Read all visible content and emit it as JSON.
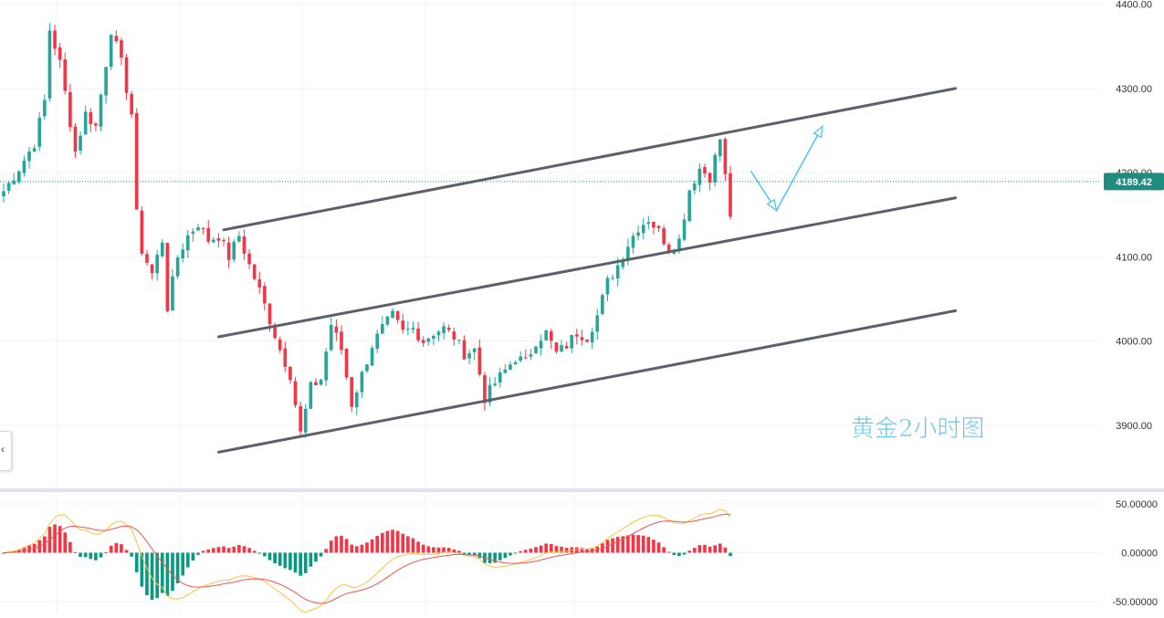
{
  "chart_data": [
    {
      "type": "candlestick",
      "pane": "price",
      "annotation": "黄金2小时图",
      "last_price": 4189.42,
      "price_ticks": [
        "3900.00",
        "4000.00",
        "4100.00",
        "4200.00",
        "4300.00",
        "4400.00"
      ],
      "ylim": [
        3825,
        4405
      ],
      "x_index_range": [
        0,
        142
      ],
      "close_path": [
        [
          0,
          4178
        ],
        [
          3,
          4205
        ],
        [
          6,
          4235
        ],
        [
          8,
          4285
        ],
        [
          9,
          4370
        ],
        [
          11,
          4330
        ],
        [
          13,
          4260
        ],
        [
          14,
          4225
        ],
        [
          16,
          4270
        ],
        [
          18,
          4255
        ],
        [
          20,
          4330
        ],
        [
          21,
          4370
        ],
        [
          23,
          4330
        ],
        [
          25,
          4270
        ],
        [
          26,
          4150
        ],
        [
          27,
          4108
        ],
        [
          29,
          4080
        ],
        [
          31,
          4120
        ],
        [
          32,
          4040
        ],
        [
          34,
          4100
        ],
        [
          36,
          4125
        ],
        [
          38,
          4140
        ],
        [
          40,
          4120
        ],
        [
          42,
          4125
        ],
        [
          44,
          4100
        ],
        [
          46,
          4125
        ],
        [
          48,
          4090
        ],
        [
          50,
          4060
        ],
        [
          52,
          4025
        ],
        [
          54,
          3990
        ],
        [
          56,
          3960
        ],
        [
          58,
          3890
        ],
        [
          60,
          3945
        ],
        [
          62,
          3955
        ],
        [
          64,
          4020
        ],
        [
          66,
          3990
        ],
        [
          68,
          3925
        ],
        [
          70,
          3960
        ],
        [
          72,
          3995
        ],
        [
          74,
          4015
        ],
        [
          76,
          4030
        ],
        [
          78,
          4010
        ],
        [
          80,
          4015
        ],
        [
          82,
          4000
        ],
        [
          84,
          4010
        ],
        [
          86,
          4015
        ],
        [
          88,
          4005
        ],
        [
          90,
          3985
        ],
        [
          92,
          3990
        ],
        [
          94,
          3932
        ],
        [
          96,
          3950
        ],
        [
          98,
          3965
        ],
        [
          100,
          3980
        ],
        [
          102,
          3975
        ],
        [
          104,
          4000
        ],
        [
          106,
          4010
        ],
        [
          108,
          3985
        ],
        [
          110,
          3995
        ],
        [
          112,
          4010
        ],
        [
          114,
          4005
        ],
        [
          116,
          4030
        ],
        [
          118,
          4070
        ],
        [
          120,
          4090
        ],
        [
          122,
          4115
        ],
        [
          124,
          4135
        ],
        [
          126,
          4145
        ],
        [
          128,
          4130
        ],
        [
          130,
          4110
        ],
        [
          132,
          4120
        ],
        [
          134,
          4180
        ],
        [
          136,
          4205
        ],
        [
          138,
          4195
        ],
        [
          140,
          4240
        ],
        [
          141,
          4195
        ],
        [
          142,
          4150
        ],
        [
          143,
          4185
        ],
        [
          144,
          4195
        ]
      ],
      "trendlines": [
        {
          "from": {
            "x": 43,
            "y": 4132
          },
          "to": {
            "x": 186,
            "y": 4300
          }
        },
        {
          "from": {
            "x": 42,
            "y": 4005
          },
          "to": {
            "x": 186,
            "y": 4170
          }
        },
        {
          "from": {
            "x": 42,
            "y": 3868
          },
          "to": {
            "x": 186,
            "y": 4036
          }
        }
      ],
      "projection": [
        {
          "x": 146,
          "y": 4202
        },
        {
          "x": 151,
          "y": 4155
        },
        {
          "x": 160,
          "y": 4255
        }
      ]
    },
    {
      "type": "macd",
      "pane": "oscillator",
      "ticks": [
        "50.00000",
        "0.00000",
        "-50.00000"
      ],
      "ylim": [
        -62,
        62
      ]
    }
  ],
  "colors": {
    "up": "#26a69a",
    "down": "#f23645",
    "trendline": "#5d606b",
    "projection": "#4fc3f7",
    "annotation": "#6ec3ea",
    "price_tag": "#1e8c7e",
    "grid": "#f0f3fa",
    "macd_line": "#f6c343",
    "signal_line": "#ef5350",
    "hist_up": "#f23645",
    "hist_down": "#089981"
  }
}
